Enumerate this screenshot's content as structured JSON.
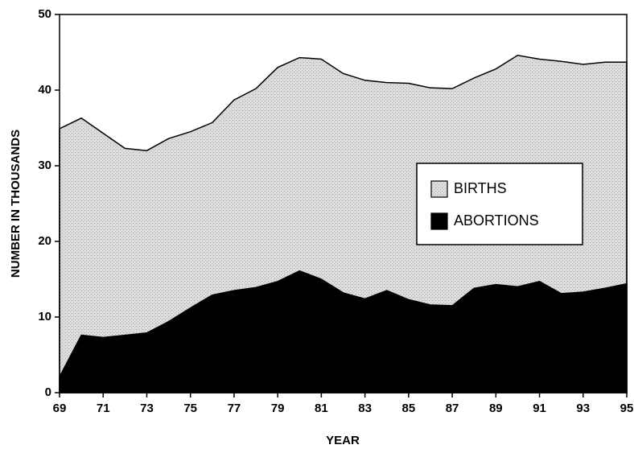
{
  "chart_data": {
    "type": "area",
    "xlabel": "YEAR",
    "ylabel": "NUMBER IN THOUSANDS",
    "x": [
      69,
      70,
      71,
      72,
      73,
      74,
      75,
      76,
      77,
      78,
      79,
      80,
      81,
      82,
      83,
      84,
      85,
      86,
      87,
      88,
      89,
      90,
      91,
      92,
      93,
      94,
      95
    ],
    "series": [
      {
        "name": "BIRTHS",
        "color": "#d6d6d6",
        "values": [
          34.9,
          36.3,
          34.3,
          32.3,
          32.0,
          33.6,
          34.5,
          35.7,
          38.7,
          40.2,
          43.0,
          44.3,
          44.1,
          42.2,
          41.3,
          41.0,
          40.9,
          40.3,
          40.2,
          41.6,
          42.8,
          44.6,
          44.1,
          43.8,
          43.4,
          43.7,
          43.7
        ]
      },
      {
        "name": "ABORTIONS",
        "color": "#000000",
        "values": [
          2.1,
          7.6,
          7.3,
          7.6,
          7.9,
          9.4,
          11.2,
          12.9,
          13.5,
          13.9,
          14.7,
          16.1,
          15.0,
          13.2,
          12.4,
          13.5,
          12.3,
          11.6,
          11.5,
          13.8,
          14.3,
          14.0,
          14.7,
          13.1,
          13.3,
          13.8,
          14.4
        ]
      }
    ],
    "xlim": [
      69,
      95
    ],
    "xticks": [
      69,
      71,
      73,
      75,
      77,
      79,
      81,
      83,
      85,
      87,
      89,
      91,
      93,
      95
    ],
    "ylim": [
      0,
      50
    ],
    "yticks": [
      0,
      10,
      20,
      30,
      40,
      50
    ],
    "legend": "right",
    "grid": false
  }
}
